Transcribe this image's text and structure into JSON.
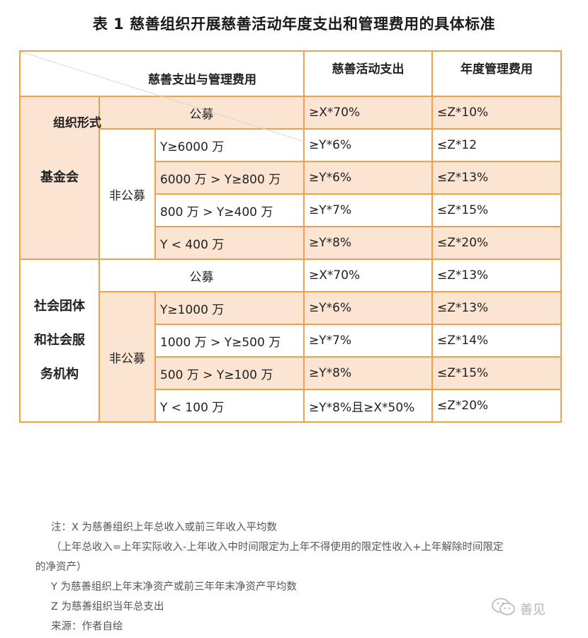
{
  "title": "表 1  慈善组织开展慈善活动年度支出和管理费用的具体标准",
  "header": {
    "diag_top": "慈善支出与管理费用",
    "diag_bottom": "组织形式",
    "col_activity": "慈善活动支出",
    "col_admin": "年度管理费用"
  },
  "foundation": {
    "label": "基金会",
    "public_label": "公募",
    "public_activity": "≥X*70%",
    "public_admin": "≤Z*10%",
    "nonpublic_label": "非公募",
    "rows": [
      {
        "cond": "Y≥6000 万",
        "activity": "≥Y*6%",
        "admin": "≤Z*12"
      },
      {
        "cond": "6000 万 > Y≥800 万",
        "activity": "≥Y*6%",
        "admin": "≤Z*13%"
      },
      {
        "cond": "800 万 > Y≥400 万",
        "activity": "≥Y*7%",
        "admin": "≤Z*15%"
      },
      {
        "cond": "Y < 400 万",
        "activity": "≥Y*8%",
        "admin": "≤Z*20%"
      }
    ]
  },
  "social": {
    "label_lines": [
      "社会团体",
      "和社会服",
      "务机构"
    ],
    "public_label": "公募",
    "public_activity": "≥X*70%",
    "public_admin": "≤Z*13%",
    "nonpublic_label": "非公募",
    "rows": [
      {
        "cond": "Y≥1000 万",
        "activity": "≥Y*6%",
        "admin": "≤Z*13%"
      },
      {
        "cond": "1000 万 > Y≥500 万",
        "activity": "≥Y*7%",
        "admin": "≤Z*14%"
      },
      {
        "cond": "500 万 > Y≥100 万",
        "activity": "≥Y*8%",
        "admin": "≤Z*15%"
      },
      {
        "cond": "Y < 100 万",
        "activity": "≥Y*8%且≥X*50%",
        "admin": "≤Z*20%"
      }
    ]
  },
  "notes": {
    "line1": "注：X 为慈善组织上年总收入或前三年收入平均数",
    "line2": "（上年总收入=上年实际收入-上年收入中时间限定为上年不得使用的限定性收入+上年解除时间限定",
    "line3": "的净资产）",
    "line4": "Y 为慈善组织上年末净资产或前三年年末净资产平均数",
    "line5": "Z 为慈善组织当年总支出",
    "line6": "来源：作者自绘"
  },
  "watermark": {
    "text": "善见",
    "icon": "wechat-icon"
  }
}
